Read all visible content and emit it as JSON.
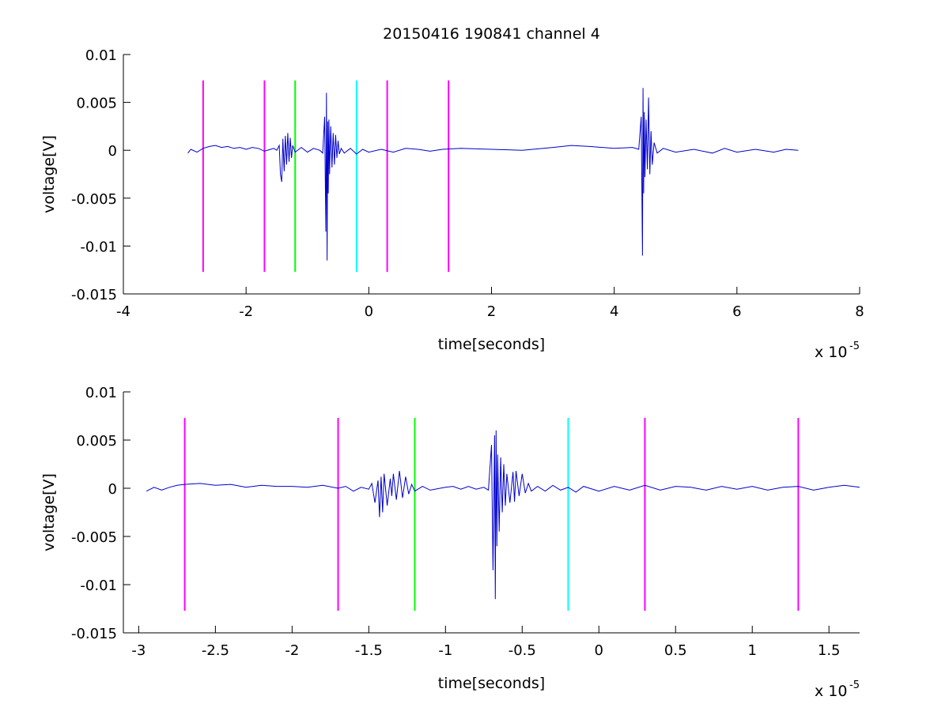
{
  "chart_data": [
    {
      "type": "line",
      "title": "20150416 190841 channel 4",
      "xlabel": "time[seconds]",
      "ylabel": "voltage[V]",
      "x_multiplier_base": "x 10",
      "x_multiplier_exp": "-5",
      "xlim": [
        -4,
        8
      ],
      "ylim": [
        -0.015,
        0.01
      ],
      "xticks": [
        -4,
        -2,
        0,
        2,
        4,
        6,
        8
      ],
      "xtick_labels": [
        "-4",
        "-2",
        "0",
        "2",
        "4",
        "6",
        "8"
      ],
      "yticks": [
        -0.015,
        -0.01,
        -0.005,
        0,
        0.005,
        0.01
      ],
      "ytick_labels": [
        "-0.015",
        "-0.01",
        "-0.005",
        "0",
        "0.005",
        "0.01"
      ],
      "grid": false,
      "series": [
        {
          "color": "#0000cc",
          "x": [
            -2.95,
            -2.9,
            -2.8,
            -2.7,
            -2.6,
            -2.5,
            -2.4,
            -2.3,
            -2.2,
            -2.1,
            -2.0,
            -1.9,
            -1.8,
            -1.7,
            -1.6,
            -1.55,
            -1.5,
            -1.46,
            -1.44,
            -1.42,
            -1.4,
            -1.38,
            -1.36,
            -1.34,
            -1.32,
            -1.3,
            -1.28,
            -1.26,
            -1.24,
            -1.2,
            -1.1,
            -1.0,
            -0.9,
            -0.8,
            -0.75,
            -0.72,
            -0.7,
            -0.69,
            -0.68,
            -0.67,
            -0.66,
            -0.65,
            -0.64,
            -0.62,
            -0.6,
            -0.58,
            -0.56,
            -0.54,
            -0.52,
            -0.5,
            -0.48,
            -0.45,
            -0.4,
            -0.3,
            -0.2,
            -0.1,
            0.0,
            0.2,
            0.4,
            0.6,
            0.8,
            1.0,
            1.2,
            1.5,
            2.0,
            2.5,
            3.0,
            3.3,
            3.6,
            4.0,
            4.3,
            4.4,
            4.44,
            4.46,
            4.47,
            4.48,
            4.49,
            4.5,
            4.52,
            4.54,
            4.56,
            4.58,
            4.6,
            4.62,
            4.65,
            4.7,
            4.8,
            5.0,
            5.3,
            5.6,
            5.8,
            6.0,
            6.3,
            6.6,
            6.8,
            7.0
          ],
          "y": [
            -0.0003,
            0.0001,
            -0.0002,
            0.0002,
            0.0004,
            0.0005,
            0.0003,
            0.0004,
            0.0002,
            0.0003,
            0.0001,
            0.0003,
            0.0002,
            -0.0001,
            0.0001,
            0.0002,
            0.0,
            0.0005,
            -0.0025,
            -0.0033,
            0.0012,
            -0.0022,
            0.0015,
            -0.0015,
            0.0018,
            -0.0012,
            0.0013,
            -0.0008,
            0.0005,
            -0.0002,
            0.0003,
            -0.0002,
            0.0002,
            0.0,
            -0.0003,
            0.0035,
            -0.0085,
            0.006,
            -0.0115,
            0.003,
            -0.0045,
            0.0032,
            -0.0025,
            0.0025,
            -0.0018,
            0.0018,
            -0.0015,
            0.0016,
            -0.0008,
            0.001,
            -0.0004,
            0.0002,
            -0.0003,
            0.0002,
            -0.0004,
            0.0001,
            -0.0002,
            0.0001,
            -0.0002,
            0.0002,
            0.0001,
            -0.0001,
            0.0001,
            0.0002,
            0.0001,
            0.0,
            0.0003,
            0.0005,
            0.0004,
            0.0002,
            0.0003,
            0.0001,
            0.0035,
            -0.011,
            0.0065,
            -0.0045,
            0.004,
            -0.0028,
            0.0032,
            -0.002,
            0.0055,
            -0.0025,
            0.002,
            -0.0015,
            0.0008,
            -0.0003,
            0.0002,
            -0.0002,
            0.0001,
            -0.0003,
            0.0002,
            -0.0002,
            0.0001,
            -0.0002,
            0.0001,
            0.0
          ]
        }
      ],
      "vertical_markers": [
        {
          "x": -2.7,
          "color": "#ff00ff"
        },
        {
          "x": -1.7,
          "color": "#ff00ff"
        },
        {
          "x": -1.2,
          "color": "#00ff00"
        },
        {
          "x": -0.2,
          "color": "#00ffff"
        },
        {
          "x": 0.3,
          "color": "#ff00ff"
        },
        {
          "x": 1.3,
          "color": "#ff00ff"
        }
      ],
      "marker_ylim": [
        -0.0127,
        0.0073
      ]
    },
    {
      "type": "line",
      "title": "",
      "xlabel": "time[seconds]",
      "ylabel": "voltage[V]",
      "x_multiplier_base": "x 10",
      "x_multiplier_exp": "-5",
      "xlim": [
        -3.1,
        1.7
      ],
      "ylim": [
        -0.015,
        0.01
      ],
      "xticks": [
        -3,
        -2.5,
        -2,
        -1.5,
        -1,
        -0.5,
        0,
        0.5,
        1,
        1.5
      ],
      "xtick_labels": [
        "-3",
        "-2.5",
        "-2",
        "-1.5",
        "-1",
        "-0.5",
        "0",
        "0.5",
        "1",
        "1.5"
      ],
      "yticks": [
        -0.015,
        -0.01,
        -0.005,
        0,
        0.005,
        0.01
      ],
      "ytick_labels": [
        "-0.015",
        "-0.01",
        "-0.005",
        "0",
        "0.005",
        "0.01"
      ],
      "grid": false,
      "series": [
        {
          "color": "#0000cc",
          "x": [
            -2.95,
            -2.9,
            -2.85,
            -2.8,
            -2.75,
            -2.7,
            -2.6,
            -2.5,
            -2.4,
            -2.3,
            -2.2,
            -2.1,
            -2.0,
            -1.9,
            -1.8,
            -1.7,
            -1.65,
            -1.6,
            -1.55,
            -1.5,
            -1.48,
            -1.46,
            -1.44,
            -1.43,
            -1.42,
            -1.41,
            -1.4,
            -1.38,
            -1.36,
            -1.35,
            -1.34,
            -1.32,
            -1.3,
            -1.28,
            -1.26,
            -1.24,
            -1.22,
            -1.2,
            -1.15,
            -1.1,
            -1.0,
            -0.95,
            -0.9,
            -0.85,
            -0.8,
            -0.75,
            -0.72,
            -0.7,
            -0.69,
            -0.68,
            -0.675,
            -0.67,
            -0.665,
            -0.66,
            -0.65,
            -0.64,
            -0.63,
            -0.62,
            -0.61,
            -0.6,
            -0.58,
            -0.56,
            -0.55,
            -0.54,
            -0.52,
            -0.5,
            -0.48,
            -0.46,
            -0.44,
            -0.4,
            -0.35,
            -0.3,
            -0.25,
            -0.2,
            -0.15,
            -0.1,
            0.0,
            0.1,
            0.2,
            0.3,
            0.4,
            0.5,
            0.6,
            0.7,
            0.8,
            0.9,
            1.0,
            1.1,
            1.2,
            1.3,
            1.4,
            1.5,
            1.6,
            1.7
          ],
          "y": [
            -0.0003,
            0.0001,
            -0.0002,
            0.0001,
            0.0003,
            0.0004,
            0.0005,
            0.0003,
            0.0004,
            0.0001,
            0.0003,
            0.0002,
            0.0002,
            0.0001,
            0.0003,
            0.0,
            0.0002,
            -0.0003,
            0.0001,
            -0.0001,
            0.0005,
            -0.0015,
            0.0008,
            -0.003,
            0.0012,
            -0.0025,
            0.0015,
            -0.0018,
            0.001,
            -0.0008,
            0.0015,
            -0.0012,
            0.0018,
            -0.001,
            0.0012,
            -0.0006,
            0.0004,
            -0.0003,
            0.0002,
            -0.0002,
            0.0001,
            0.0002,
            -0.0001,
            0.0002,
            -0.0001,
            0.0001,
            -0.0002,
            0.0045,
            -0.0085,
            0.0055,
            -0.0115,
            0.006,
            -0.006,
            0.0035,
            -0.0045,
            0.0032,
            -0.0025,
            0.0025,
            -0.0018,
            0.0015,
            -0.0015,
            0.0017,
            -0.0014,
            0.0018,
            -0.0008,
            0.0015,
            -0.0005,
            0.0005,
            -0.0003,
            0.0002,
            -0.0003,
            0.0003,
            -0.0002,
            0.0001,
            -0.0004,
            0.0002,
            -0.0003,
            0.0002,
            -0.0002,
            0.0003,
            -0.0002,
            0.0002,
            0.0001,
            -0.0002,
            0.0002,
            -0.0001,
            0.0002,
            -0.0002,
            0.0001,
            0.0002,
            -0.0002,
            0.0001,
            0.0003,
            0.0001
          ]
        }
      ],
      "vertical_markers": [
        {
          "x": -2.7,
          "color": "#ff00ff"
        },
        {
          "x": -1.7,
          "color": "#ff00ff"
        },
        {
          "x": -1.2,
          "color": "#00ff00"
        },
        {
          "x": -0.2,
          "color": "#00ffff"
        },
        {
          "x": 0.3,
          "color": "#ff00ff"
        },
        {
          "x": 1.3,
          "color": "#ff00ff"
        }
      ],
      "marker_ylim": [
        -0.0127,
        0.0073
      ]
    }
  ]
}
